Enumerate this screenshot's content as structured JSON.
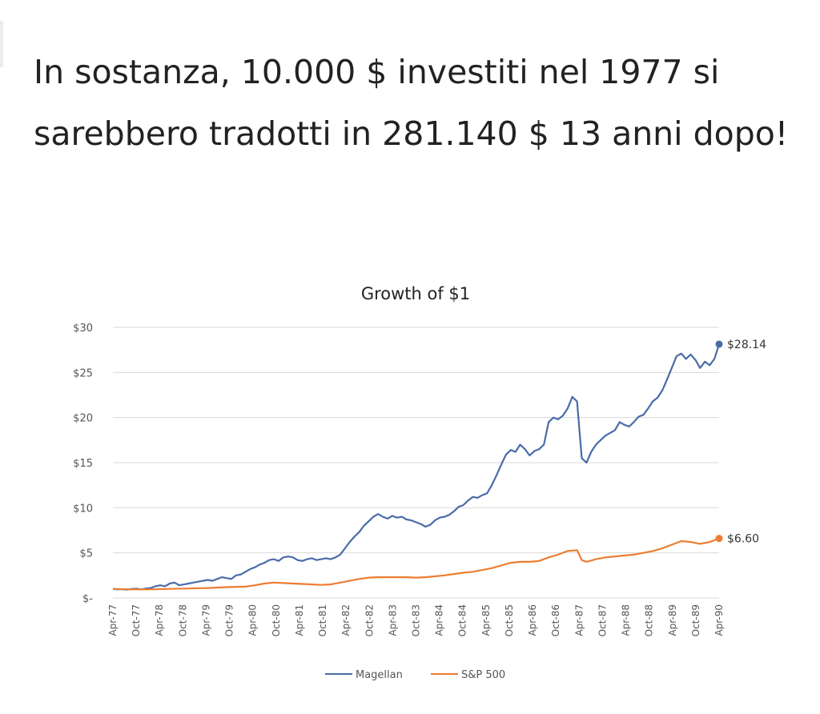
{
  "headline": "In sostanza, 10.000 $ investiti nel 1977 si sarebbero tradotti in 281.140 $ 13 anni dopo!",
  "chart_data": {
    "type": "line",
    "title": "Growth of $1",
    "xlabel": "",
    "ylabel": "",
    "ylim": [
      0,
      30
    ],
    "y_ticks": [
      {
        "value": 0,
        "label": "$-"
      },
      {
        "value": 5,
        "label": "$5"
      },
      {
        "value": 10,
        "label": "$10"
      },
      {
        "value": 15,
        "label": "$15"
      },
      {
        "value": 20,
        "label": "$20"
      },
      {
        "value": 25,
        "label": "$25"
      },
      {
        "value": 30,
        "label": "$30"
      }
    ],
    "x_ticks": [
      "Apr-77",
      "Oct-77",
      "Apr-78",
      "Oct-78",
      "Apr-79",
      "Oct-79",
      "Apr-80",
      "Oct-80",
      "Apr-81",
      "Oct-81",
      "Apr-82",
      "Oct-82",
      "Apr-83",
      "Oct-83",
      "Apr-84",
      "Oct-84",
      "Apr-85",
      "Oct-85",
      "Apr-86",
      "Oct-86",
      "Apr-87",
      "Oct-87",
      "Apr-88",
      "Oct-88",
      "Apr-89",
      "Oct-89",
      "Apr-90"
    ],
    "grid": true,
    "legend_position": "bottom",
    "series": [
      {
        "name": "Magellan",
        "color": "#4a6ba8",
        "end_label": "$28.14",
        "points": [
          [
            0,
            1.0
          ],
          [
            1,
            0.95
          ],
          [
            2,
            0.98
          ],
          [
            3,
            0.92
          ],
          [
            4,
            1.0
          ],
          [
            5,
            1.02
          ],
          [
            6,
            0.95
          ],
          [
            7,
            1.05
          ],
          [
            8,
            1.1
          ],
          [
            9,
            1.3
          ],
          [
            10,
            1.4
          ],
          [
            11,
            1.3
          ],
          [
            12,
            1.6
          ],
          [
            13,
            1.7
          ],
          [
            14,
            1.4
          ],
          [
            15,
            1.5
          ],
          [
            16,
            1.6
          ],
          [
            17,
            1.7
          ],
          [
            18,
            1.8
          ],
          [
            19,
            1.9
          ],
          [
            20,
            2.0
          ],
          [
            21,
            1.9
          ],
          [
            22,
            2.1
          ],
          [
            23,
            2.3
          ],
          [
            24,
            2.2
          ],
          [
            25,
            2.1
          ],
          [
            26,
            2.5
          ],
          [
            27,
            2.6
          ],
          [
            28,
            2.9
          ],
          [
            29,
            3.2
          ],
          [
            30,
            3.4
          ],
          [
            31,
            3.7
          ],
          [
            32,
            3.9
          ],
          [
            33,
            4.2
          ],
          [
            34,
            4.3
          ],
          [
            35,
            4.1
          ],
          [
            36,
            4.5
          ],
          [
            37,
            4.6
          ],
          [
            38,
            4.5
          ],
          [
            39,
            4.2
          ],
          [
            40,
            4.1
          ],
          [
            41,
            4.3
          ],
          [
            42,
            4.4
          ],
          [
            43,
            4.2
          ],
          [
            44,
            4.3
          ],
          [
            45,
            4.4
          ],
          [
            46,
            4.3
          ],
          [
            47,
            4.5
          ],
          [
            48,
            4.8
          ],
          [
            49,
            5.5
          ],
          [
            50,
            6.2
          ],
          [
            51,
            6.8
          ],
          [
            52,
            7.3
          ],
          [
            53,
            8.0
          ],
          [
            54,
            8.5
          ],
          [
            55,
            9.0
          ],
          [
            56,
            9.3
          ],
          [
            57,
            9.0
          ],
          [
            58,
            8.8
          ],
          [
            59,
            9.1
          ],
          [
            60,
            8.9
          ],
          [
            61,
            9.0
          ],
          [
            62,
            8.7
          ],
          [
            63,
            8.6
          ],
          [
            64,
            8.4
          ],
          [
            65,
            8.2
          ],
          [
            66,
            7.9
          ],
          [
            67,
            8.1
          ],
          [
            68,
            8.6
          ],
          [
            69,
            8.9
          ],
          [
            70,
            9.0
          ],
          [
            71,
            9.2
          ],
          [
            72,
            9.6
          ],
          [
            73,
            10.1
          ],
          [
            74,
            10.3
          ],
          [
            75,
            10.8
          ],
          [
            76,
            11.2
          ],
          [
            77,
            11.1
          ],
          [
            78,
            11.4
          ],
          [
            79,
            11.6
          ],
          [
            80,
            12.5
          ],
          [
            81,
            13.6
          ],
          [
            82,
            14.8
          ],
          [
            83,
            15.9
          ],
          [
            84,
            16.4
          ],
          [
            85,
            16.2
          ],
          [
            86,
            17.0
          ],
          [
            87,
            16.5
          ],
          [
            88,
            15.8
          ],
          [
            89,
            16.3
          ],
          [
            90,
            16.5
          ],
          [
            91,
            17.0
          ],
          [
            92,
            19.5
          ],
          [
            93,
            20.0
          ],
          [
            94,
            19.8
          ],
          [
            95,
            20.2
          ],
          [
            96,
            21.0
          ],
          [
            97,
            22.3
          ],
          [
            98,
            21.8
          ],
          [
            99,
            15.5
          ],
          [
            100,
            15.0
          ],
          [
            101,
            16.2
          ],
          [
            102,
            17.0
          ],
          [
            103,
            17.5
          ],
          [
            104,
            18.0
          ],
          [
            105,
            18.3
          ],
          [
            106,
            18.6
          ],
          [
            107,
            19.5
          ],
          [
            108,
            19.2
          ],
          [
            109,
            19.0
          ],
          [
            110,
            19.5
          ],
          [
            111,
            20.1
          ],
          [
            112,
            20.3
          ],
          [
            113,
            21.0
          ],
          [
            114,
            21.8
          ],
          [
            115,
            22.2
          ],
          [
            116,
            23.0
          ],
          [
            117,
            24.2
          ],
          [
            118,
            25.5
          ],
          [
            119,
            26.8
          ],
          [
            120,
            27.1
          ],
          [
            121,
            26.5
          ],
          [
            122,
            27.0
          ],
          [
            123,
            26.4
          ],
          [
            124,
            25.5
          ],
          [
            125,
            26.2
          ],
          [
            126,
            25.8
          ],
          [
            127,
            26.5
          ],
          [
            128,
            28.14
          ]
        ]
      },
      {
        "name": "S&P 500",
        "color": "#ed7d31",
        "end_label": "$6.60",
        "points": [
          [
            0,
            1.0
          ],
          [
            4,
            0.95
          ],
          [
            8,
            0.95
          ],
          [
            12,
            1.0
          ],
          [
            16,
            1.05
          ],
          [
            20,
            1.1
          ],
          [
            24,
            1.2
          ],
          [
            28,
            1.25
          ],
          [
            30,
            1.4
          ],
          [
            32,
            1.6
          ],
          [
            34,
            1.7
          ],
          [
            36,
            1.65
          ],
          [
            38,
            1.6
          ],
          [
            40,
            1.55
          ],
          [
            42,
            1.5
          ],
          [
            44,
            1.45
          ],
          [
            46,
            1.5
          ],
          [
            48,
            1.7
          ],
          [
            50,
            1.9
          ],
          [
            52,
            2.1
          ],
          [
            54,
            2.25
          ],
          [
            56,
            2.3
          ],
          [
            58,
            2.3
          ],
          [
            60,
            2.3
          ],
          [
            62,
            2.3
          ],
          [
            64,
            2.25
          ],
          [
            66,
            2.3
          ],
          [
            68,
            2.4
          ],
          [
            70,
            2.5
          ],
          [
            72,
            2.65
          ],
          [
            74,
            2.8
          ],
          [
            76,
            2.9
          ],
          [
            78,
            3.1
          ],
          [
            80,
            3.3
          ],
          [
            82,
            3.6
          ],
          [
            84,
            3.9
          ],
          [
            86,
            4.0
          ],
          [
            88,
            4.0
          ],
          [
            90,
            4.1
          ],
          [
            92,
            4.5
          ],
          [
            94,
            4.8
          ],
          [
            96,
            5.2
          ],
          [
            98,
            5.3
          ],
          [
            99,
            4.2
          ],
          [
            100,
            4.0
          ],
          [
            102,
            4.3
          ],
          [
            104,
            4.5
          ],
          [
            106,
            4.6
          ],
          [
            108,
            4.7
          ],
          [
            110,
            4.8
          ],
          [
            112,
            5.0
          ],
          [
            114,
            5.2
          ],
          [
            116,
            5.5
          ],
          [
            118,
            5.9
          ],
          [
            120,
            6.3
          ],
          [
            122,
            6.2
          ],
          [
            124,
            6.0
          ],
          [
            126,
            6.2
          ],
          [
            128,
            6.6
          ]
        ]
      }
    ]
  }
}
